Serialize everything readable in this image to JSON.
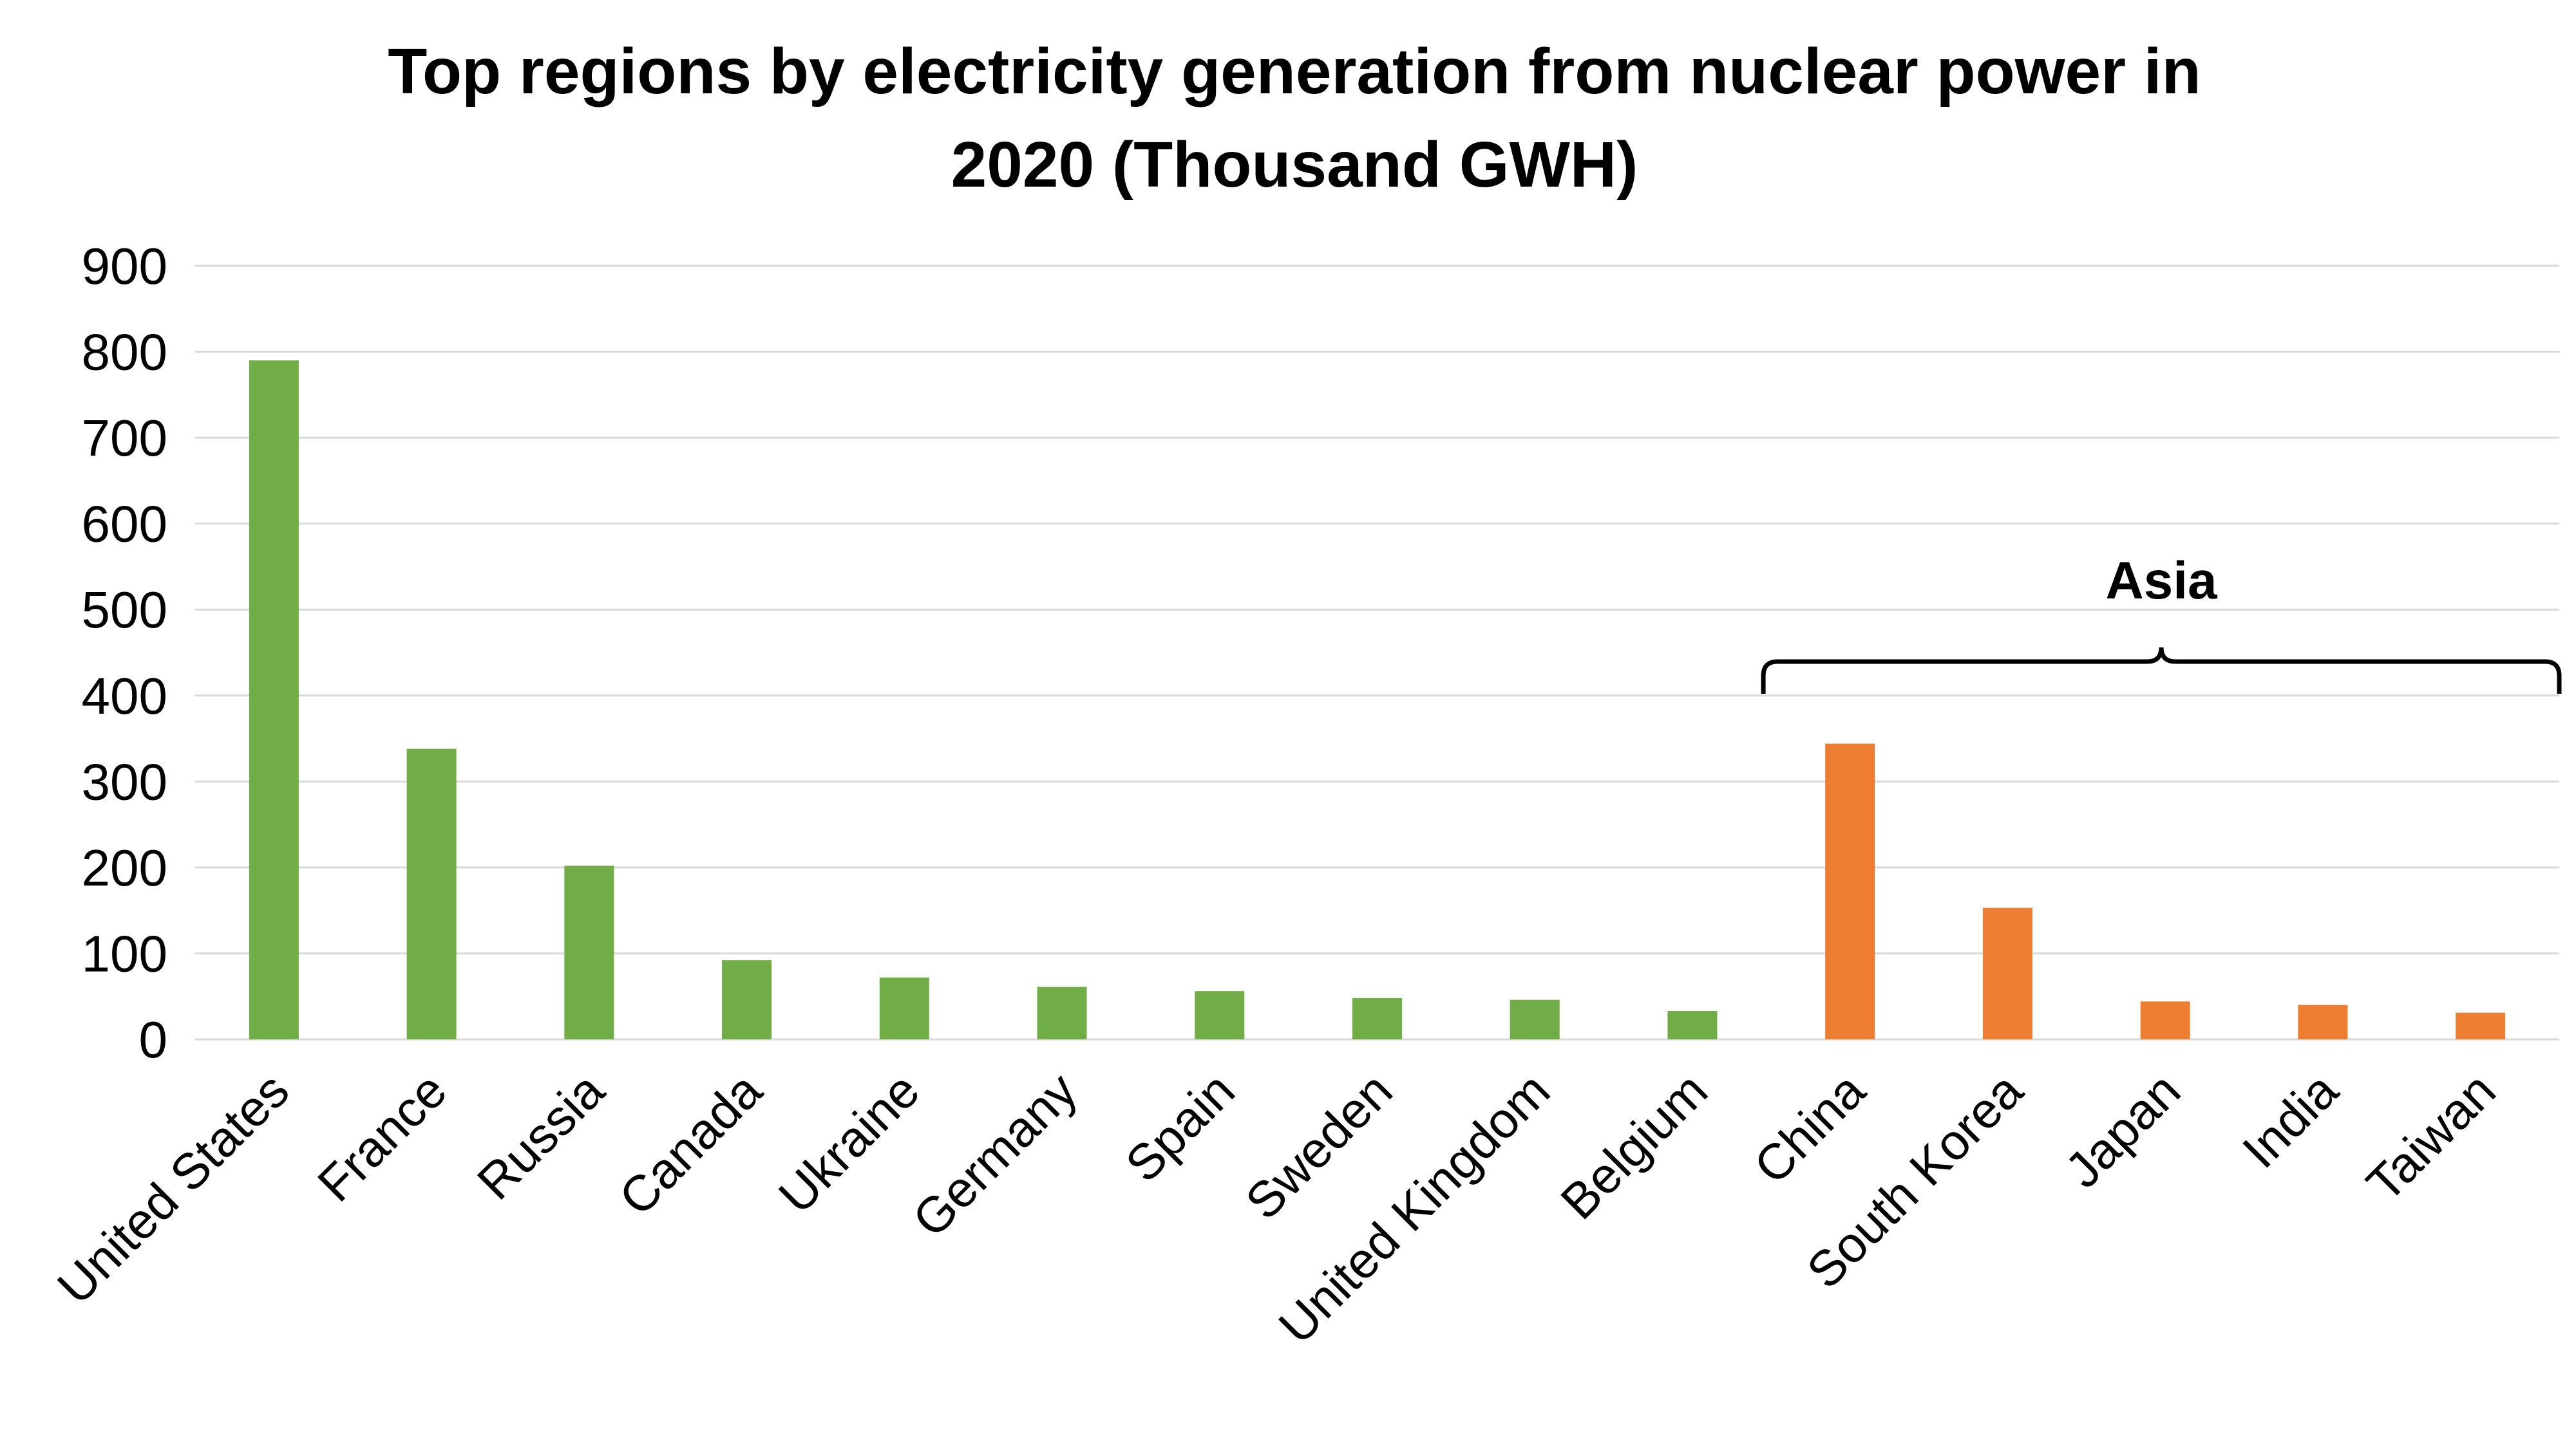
{
  "chart_data": {
    "type": "bar",
    "title": "Top regions by electricity generation from nuclear power in 2020 (Thousand GWH)",
    "title_lines": [
      "Top regions by electricity generation from nuclear power in",
      "2020 (Thousand GWH)"
    ],
    "xlabel": "",
    "ylabel": "",
    "ylim": [
      0,
      900
    ],
    "yticks": [
      0,
      100,
      200,
      300,
      400,
      500,
      600,
      700,
      800,
      900
    ],
    "grid": true,
    "categories": [
      "United States",
      "France",
      "Russia",
      "Canada",
      "Ukraine",
      "Germany",
      "Spain",
      "Sweden",
      "United Kingdom",
      "Belgium",
      "China",
      "South Korea",
      "Japan",
      "India",
      "Taiwan"
    ],
    "values": [
      790,
      338,
      202,
      92,
      72,
      61,
      56,
      48,
      46,
      33,
      344,
      153,
      44,
      40,
      31
    ],
    "colors": [
      "#70ad47",
      "#70ad47",
      "#70ad47",
      "#70ad47",
      "#70ad47",
      "#70ad47",
      "#70ad47",
      "#70ad47",
      "#70ad47",
      "#70ad47",
      "#ed7d31",
      "#ed7d31",
      "#ed7d31",
      "#ed7d31",
      "#ed7d31"
    ],
    "annotations": [
      {
        "text": "Asia",
        "type": "bracket",
        "from": "China",
        "to": "Taiwan"
      }
    ]
  }
}
